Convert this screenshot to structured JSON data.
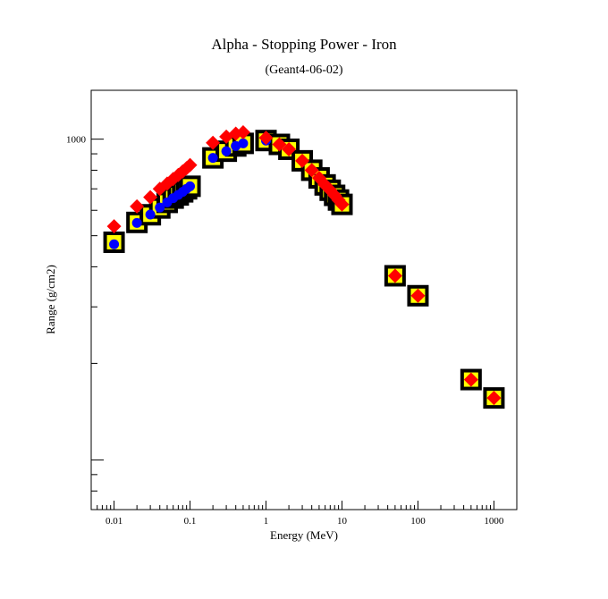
{
  "chart_data": {
    "type": "scatter",
    "title": "Alpha - Stopping Power - Iron",
    "subtitle": "(Geant4-06-02)",
    "xlabel": "Energy (MeV)",
    "ylabel": "Range (g/cm2)",
    "x_scale": "log",
    "y_scale": "log",
    "xlim": [
      0.005,
      2000
    ],
    "ylim": [
      70,
      1420
    ],
    "x_ticks": [
      {
        "value": 0.01,
        "label": "0.01"
      },
      {
        "value": 0.1,
        "label": "0.1"
      },
      {
        "value": 1,
        "label": "1"
      },
      {
        "value": 10,
        "label": "10"
      },
      {
        "value": 100,
        "label": "100"
      },
      {
        "value": 1000,
        "label": "1000"
      }
    ],
    "y_ticks": [
      {
        "value": 1000,
        "label": "1000"
      }
    ],
    "grid": false,
    "series": [
      {
        "marker": "square",
        "color": "#ffff00",
        "edge": "#000000",
        "x": [
          0.01,
          0.02,
          0.03,
          0.04,
          0.05,
          0.06,
          0.07,
          0.08,
          0.09,
          0.1,
          0.2,
          0.3,
          0.4,
          0.5,
          1,
          1.5,
          2,
          3,
          4,
          5,
          6,
          7,
          8,
          9,
          10,
          50,
          100,
          500,
          1000
        ],
        "y": [
          477,
          550,
          581,
          610,
          635,
          655,
          670,
          685,
          700,
          713,
          874,
          917,
          952,
          970,
          990,
          963,
          930,
          856,
          800,
          757,
          720,
          693,
          668,
          646,
          626,
          375,
          325,
          178,
          156
        ]
      },
      {
        "marker": "circle",
        "color": "#0000ff",
        "x": [
          0.01,
          0.02,
          0.03,
          0.04,
          0.05,
          0.06,
          0.07,
          0.08,
          0.09,
          0.1,
          0.2,
          0.3,
          0.4,
          0.5,
          1,
          1.5,
          2,
          3,
          4,
          5,
          6,
          7,
          8,
          9,
          10,
          50,
          100,
          500,
          1000
        ],
        "y": [
          470,
          548,
          582,
          612,
          635,
          655,
          670,
          685,
          700,
          713,
          874,
          917,
          952,
          970,
          990,
          963,
          930,
          856,
          800,
          757,
          720,
          693,
          668,
          646,
          626,
          375,
          325,
          178,
          156
        ]
      },
      {
        "marker": "diamond",
        "color": "#ff0000",
        "x": [
          0.01,
          0.02,
          0.03,
          0.04,
          0.05,
          0.06,
          0.07,
          0.08,
          0.09,
          0.1,
          0.2,
          0.3,
          0.4,
          0.5,
          1,
          1.5,
          2,
          3,
          4,
          5,
          6,
          7,
          8,
          9,
          10,
          50,
          100,
          500,
          1000
        ],
        "y": [
          535,
          617,
          659,
          700,
          727,
          751,
          773,
          793,
          812,
          830,
          974,
          1018,
          1040,
          1050,
          1010,
          963,
          930,
          856,
          800,
          757,
          720,
          693,
          668,
          646,
          626,
          375,
          325,
          178,
          156
        ]
      }
    ]
  }
}
